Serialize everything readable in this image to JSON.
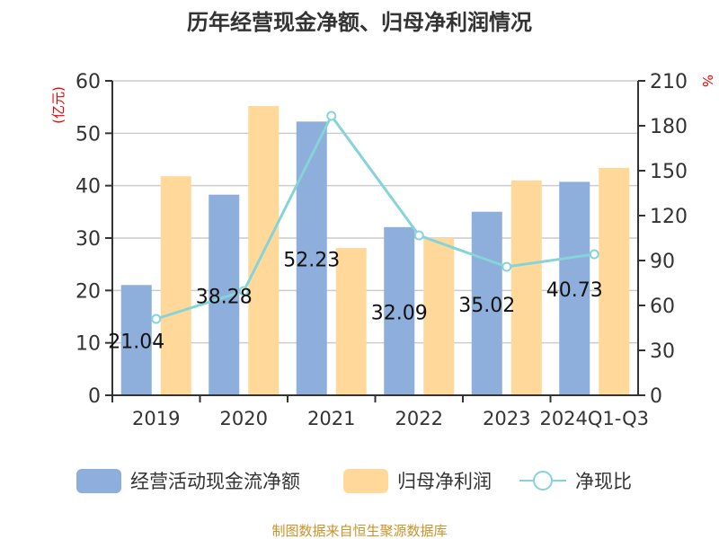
{
  "chart_data": {
    "type": "bar+line",
    "title": "历年经营现金净额、归母净利润情况",
    "categories": [
      "2019",
      "2020",
      "2021",
      "2022",
      "2023",
      "2024Q1-Q3"
    ],
    "series": [
      {
        "name": "经营活动现金流净额",
        "type": "bar",
        "axis": "left",
        "color": "#8eaedb",
        "values": [
          21.04,
          38.28,
          52.23,
          32.09,
          35.02,
          40.73
        ],
        "labels": [
          "21.04",
          "38.28",
          "52.23",
          "32.09",
          "35.02",
          "40.73"
        ]
      },
      {
        "name": "归母净利润",
        "type": "bar",
        "axis": "left",
        "color": "#ffd89a",
        "values": [
          41.8,
          55.2,
          28.1,
          30.0,
          41.0,
          43.4
        ]
      },
      {
        "name": "净现比",
        "type": "line",
        "axis": "right",
        "color": "#86d4d8",
        "values": [
          51,
          69.6,
          186.6,
          106.8,
          85.8,
          94.2
        ]
      }
    ],
    "ylabel_left": "(亿元)",
    "ylabel_right": "%",
    "ylim_left": [
      0,
      60
    ],
    "yticks_left": [
      "0",
      "10",
      "20",
      "30",
      "40",
      "50",
      "60"
    ],
    "ylim_right": [
      0,
      210
    ],
    "yticks_right": [
      "0",
      "30",
      "60",
      "90",
      "120",
      "150",
      "180",
      "210"
    ],
    "grid": true,
    "legend": "bottom"
  },
  "footer": "制图数据来自恒生聚源数据库"
}
